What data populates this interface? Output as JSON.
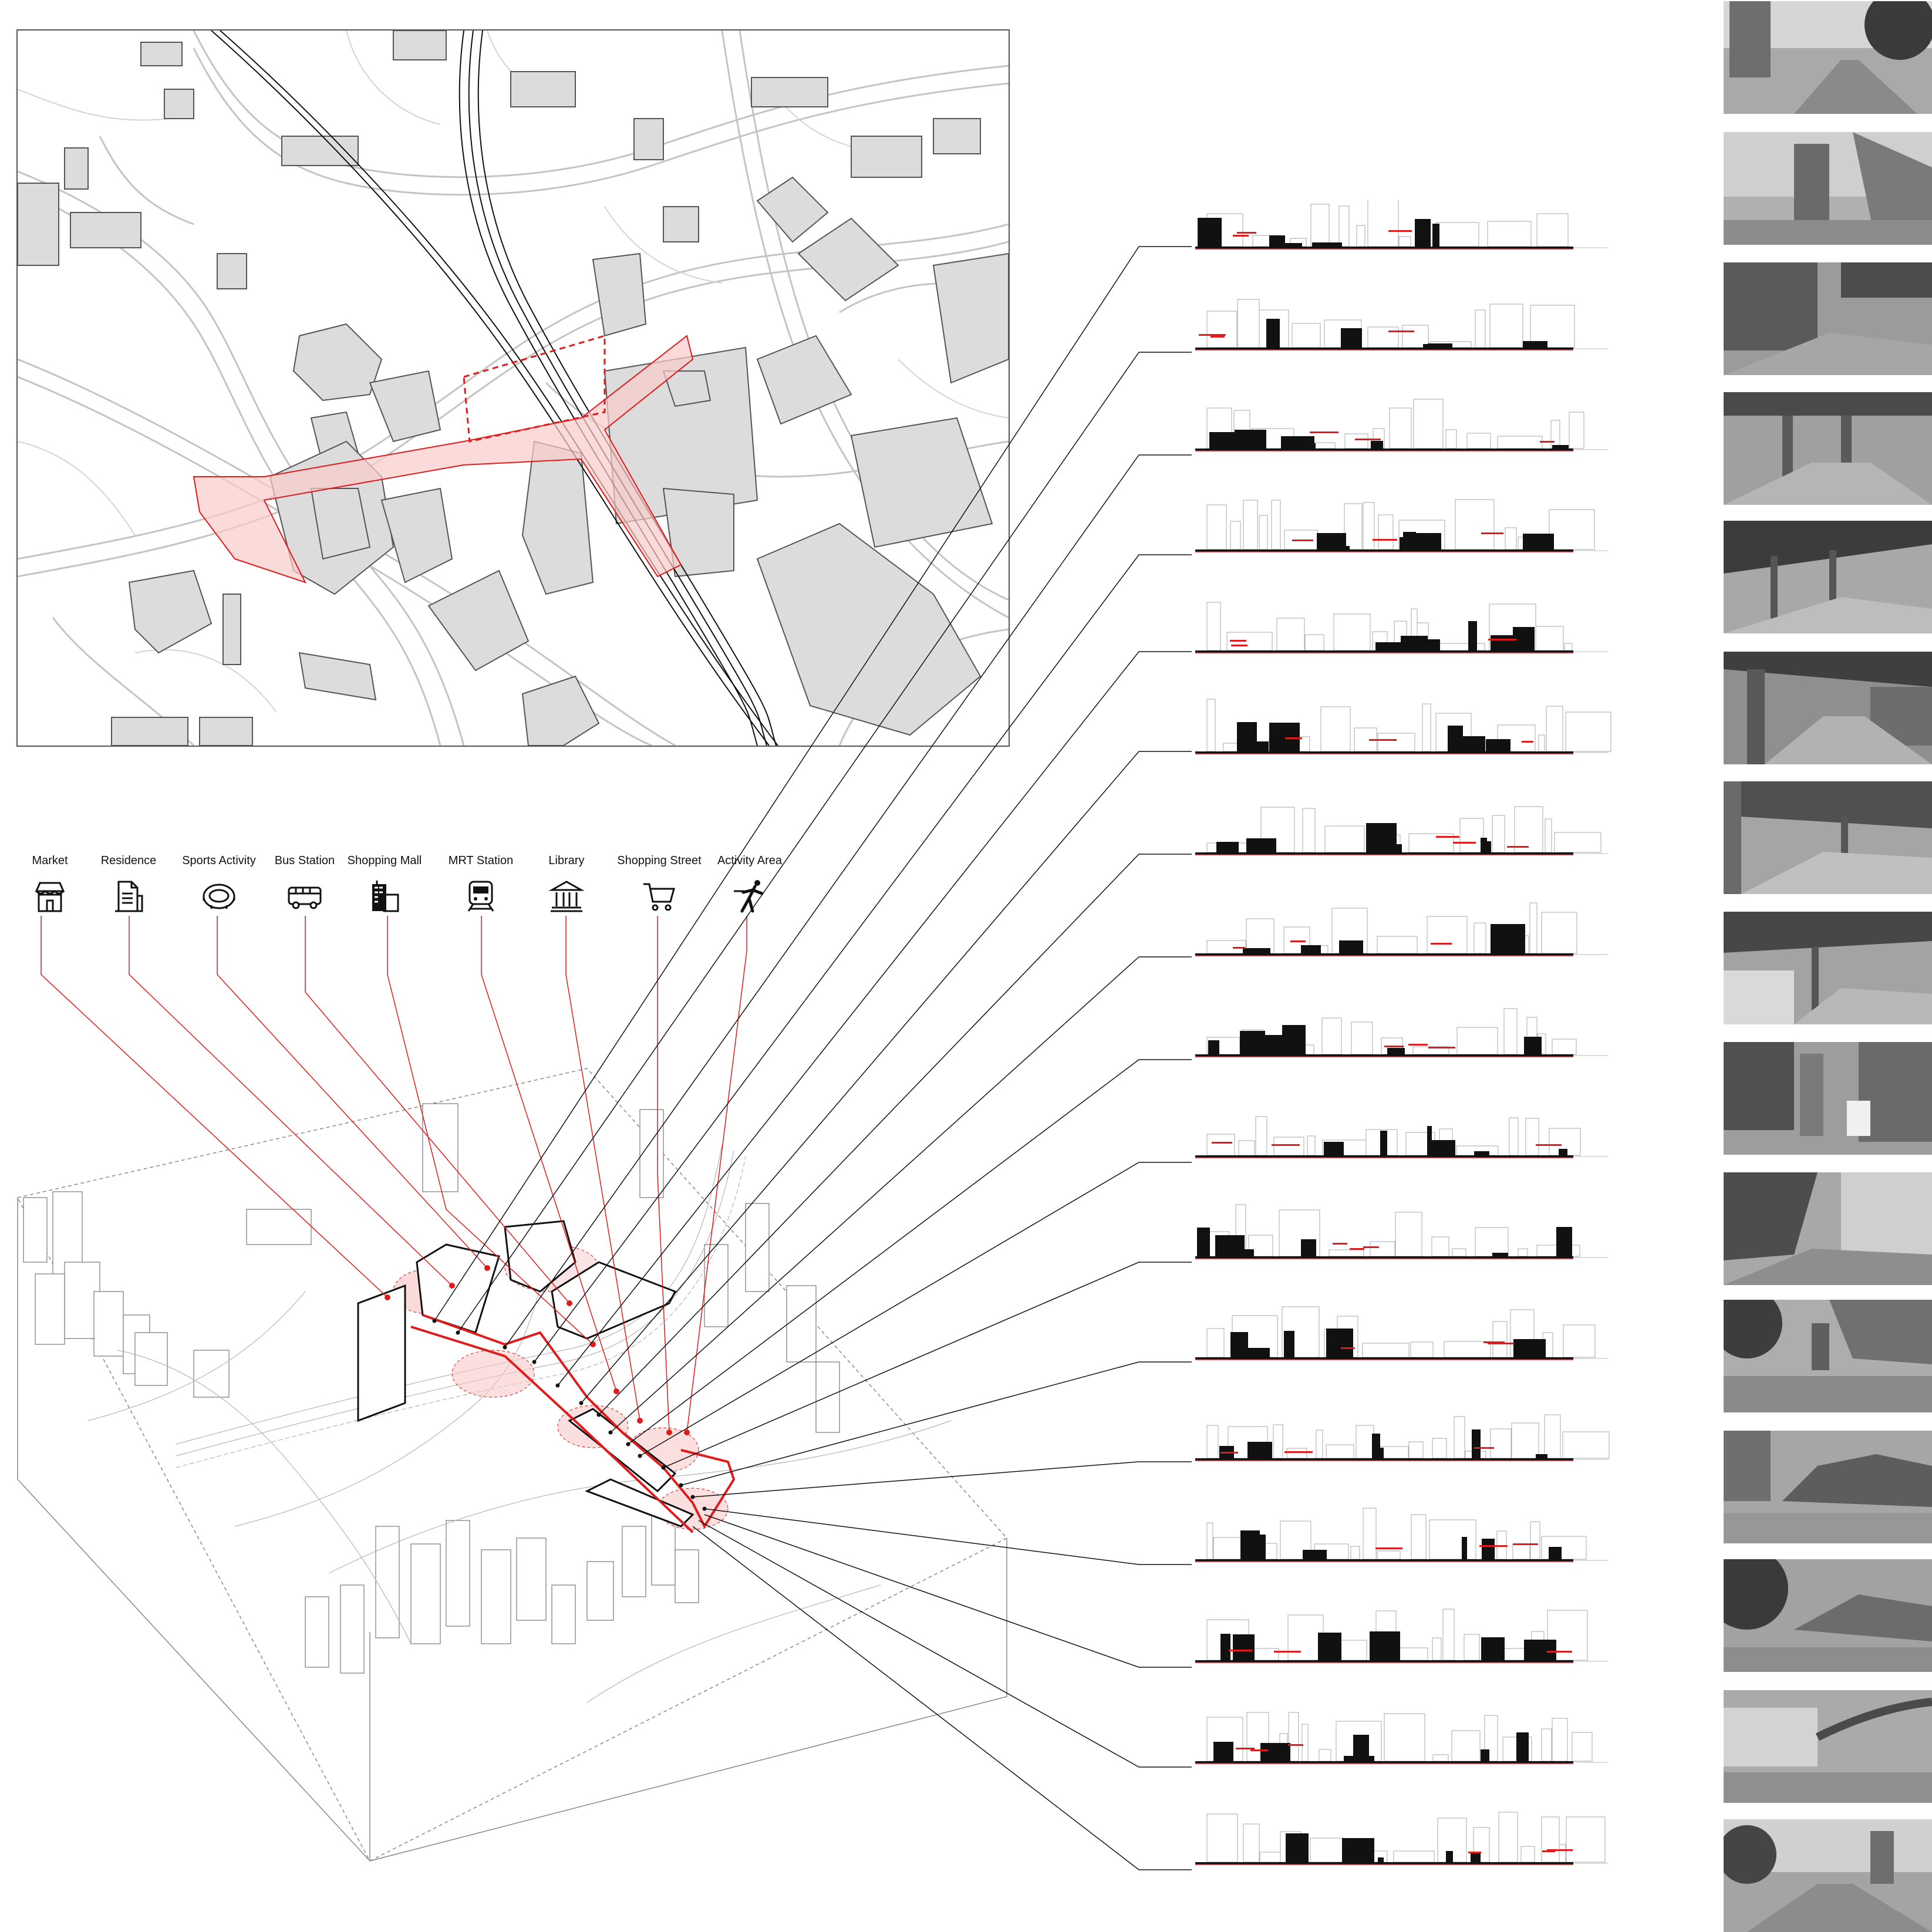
{
  "legend": {
    "items": [
      {
        "label": "Market",
        "icon": "market-icon"
      },
      {
        "label": "Residence",
        "icon": "residence-icon"
      },
      {
        "label": "Sports Activity",
        "icon": "stadium-icon"
      },
      {
        "label": "Bus Station",
        "icon": "bus-icon"
      },
      {
        "label": "Shopping Mall",
        "icon": "shopping-mall-icon"
      },
      {
        "label": "MRT Station",
        "icon": "train-icon"
      },
      {
        "label": "Library",
        "icon": "library-icon"
      },
      {
        "label": "Shopping Street",
        "icon": "shopping-cart-icon"
      },
      {
        "label": "Activity Area",
        "icon": "activity-icon"
      }
    ]
  },
  "colors": {
    "accent_red": "#e01b1b",
    "highlight_fill": "#f9caca",
    "building_fill": "#dcdcdc",
    "line": "#222222",
    "street_line": "#bdbdbd"
  },
  "sections": {
    "count": 17
  },
  "photos": {
    "count": 15
  }
}
